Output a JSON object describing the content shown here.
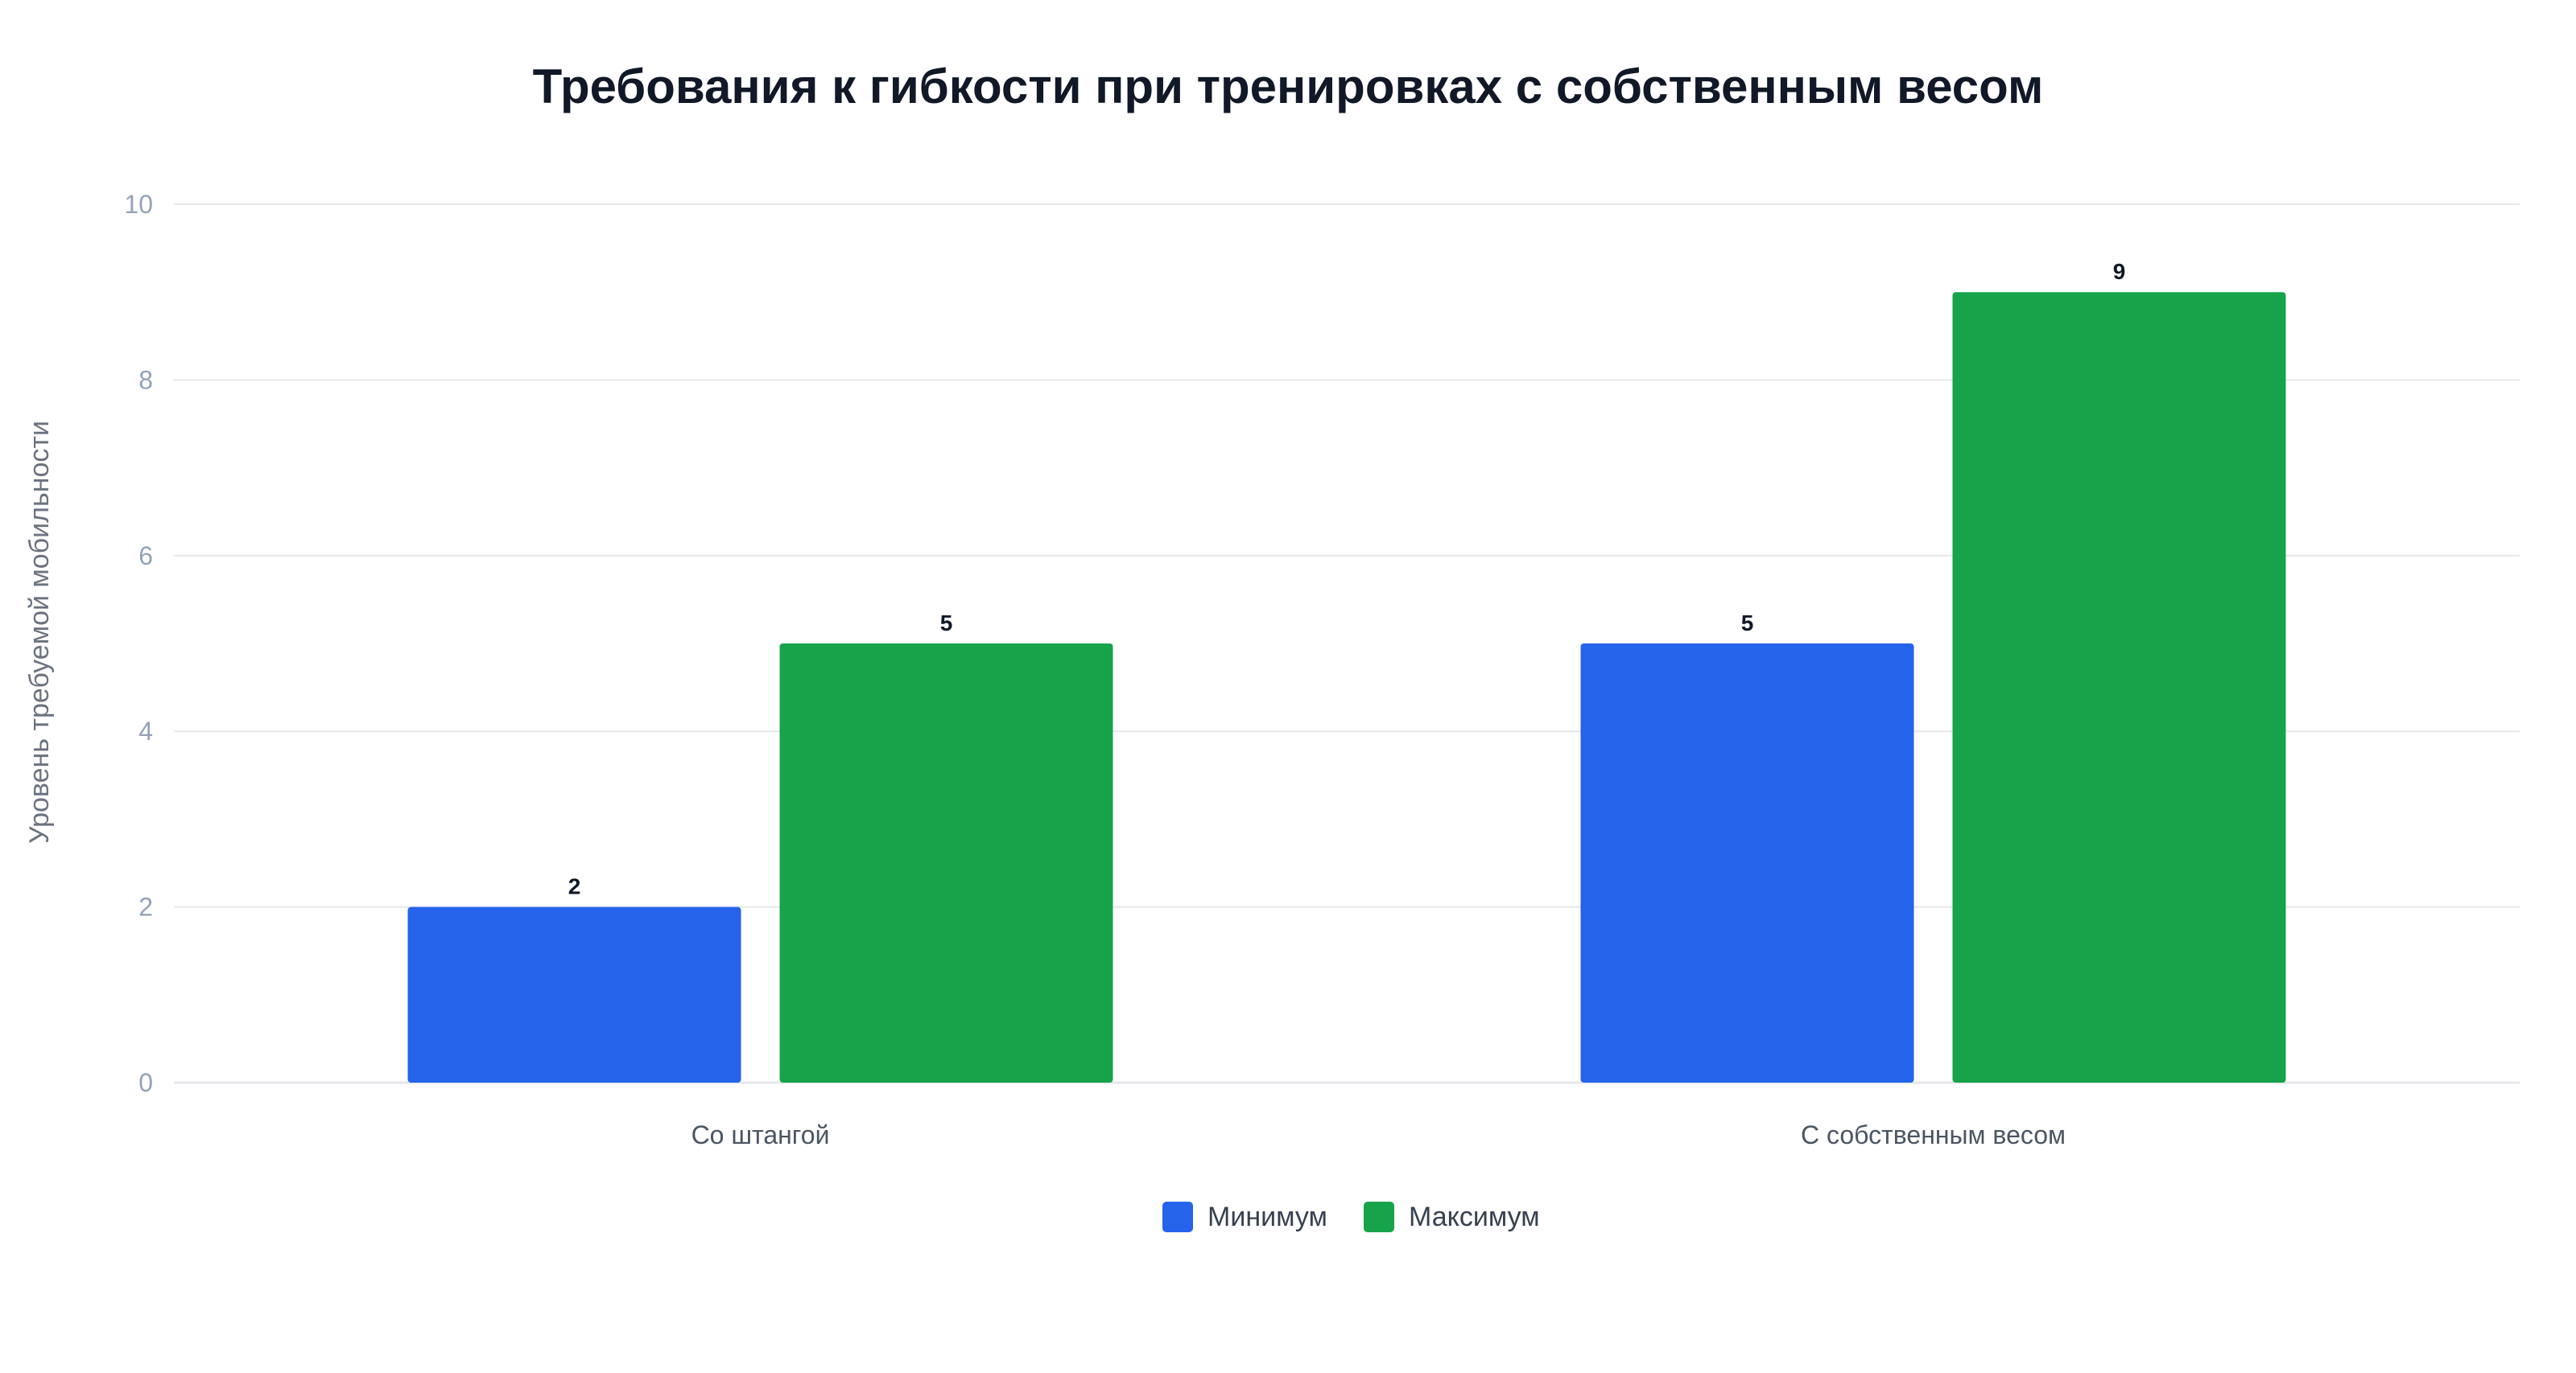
{
  "chart_data": {
    "type": "bar",
    "title": "Требования к гибкости при тренировках с собственным весом",
    "xlabel": "",
    "ylabel": "Уровень требуемой мобильности",
    "categories": [
      "Со штангой",
      "С собственным весом"
    ],
    "series": [
      {
        "name": "Минимум",
        "values": [
          2,
          5
        ],
        "color": "#2563eb"
      },
      {
        "name": "Максимум",
        "values": [
          5,
          9
        ],
        "color": "#16a34a"
      }
    ],
    "ylim": [
      0,
      10
    ],
    "yticks": [
      0,
      2,
      4,
      6,
      8,
      10
    ],
    "grid": true,
    "legend": "bottom-center",
    "data_labels": true
  }
}
